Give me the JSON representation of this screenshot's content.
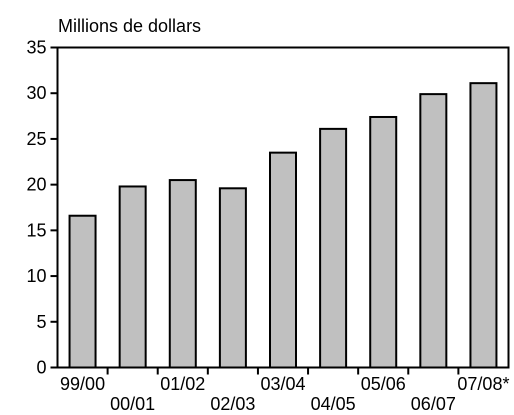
{
  "chart_data": {
    "type": "bar",
    "ylabel": "Millions de dollars",
    "categories": [
      "99/00",
      "00/01",
      "01/02",
      "02/03",
      "03/04",
      "04/05",
      "05/06",
      "06/07",
      "07/08*"
    ],
    "values": [
      16.6,
      19.8,
      20.5,
      19.6,
      23.5,
      26.1,
      27.4,
      29.9,
      31.1
    ],
    "ylim": [
      0,
      35
    ],
    "yticks": [
      0,
      5,
      10,
      15,
      20,
      25,
      30,
      35
    ],
    "grid": false,
    "bar_color": "#c0c0c0",
    "bar_edge_color": "#000000"
  }
}
